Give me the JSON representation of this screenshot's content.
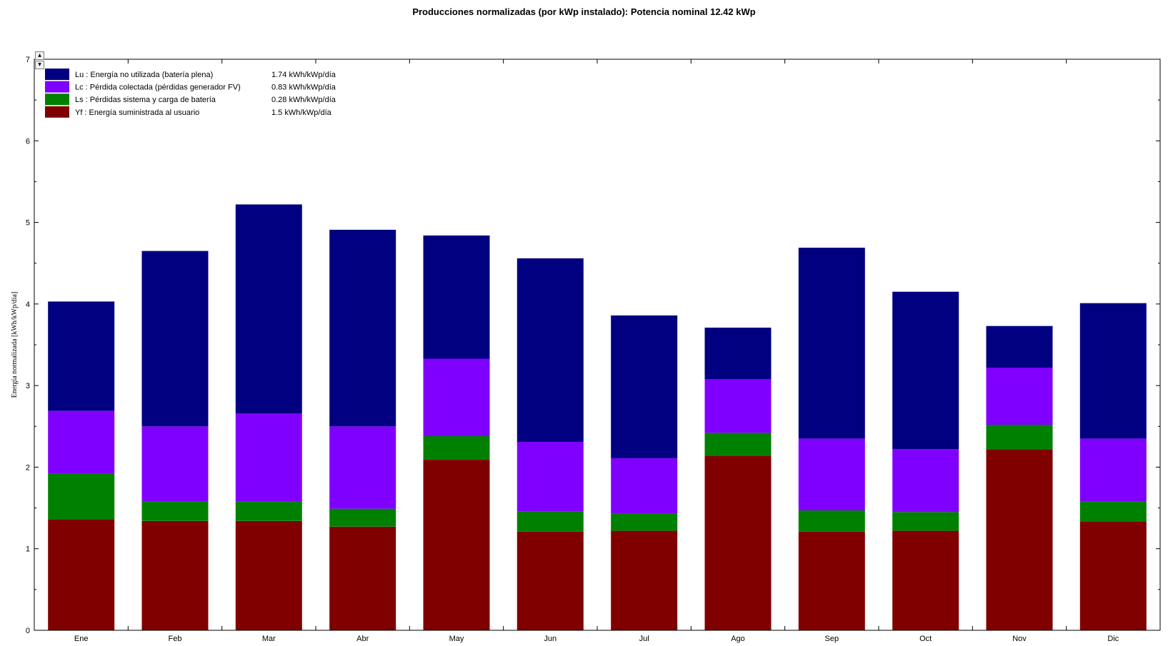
{
  "chart_data": {
    "type": "bar",
    "stacked": true,
    "title": "Producciones normalizadas (por kWp instalado):  Potencia nominal 12.42 kWp",
    "xlabel": "",
    "ylabel": "Energía normalizada [kWh/kWp/día]",
    "ylim": [
      0,
      7
    ],
    "yticks": [
      0,
      1,
      2,
      3,
      4,
      5,
      6,
      7
    ],
    "categories": [
      "Ene",
      "Feb",
      "Mar",
      "Abr",
      "May",
      "Jun",
      "Jul",
      "Ago",
      "Sep",
      "Oct",
      "Nov",
      "Dic"
    ],
    "series": [
      {
        "name": "Yf : Energía suministrada al usuario",
        "summary": "1.5 kWh/kWp/día",
        "color": "#800000",
        "values": [
          1.36,
          1.34,
          1.34,
          1.27,
          2.09,
          1.21,
          1.22,
          2.14,
          1.21,
          1.22,
          2.22,
          1.33
        ]
      },
      {
        "name": "Ls : Pérdidas sistema y carga de batería",
        "summary": "0.28 kWh/kWp/día",
        "color": "#008000",
        "values": [
          0.56,
          0.24,
          0.24,
          0.22,
          0.29,
          0.25,
          0.21,
          0.28,
          0.26,
          0.23,
          0.3,
          0.25
        ]
      },
      {
        "name": "Lc : Pérdida colectada (pérdidas generador FV)",
        "summary": "0.83 kWh/kWp/día",
        "color": "#8000ff",
        "values": [
          0.77,
          0.92,
          1.08,
          1.01,
          0.95,
          0.85,
          0.68,
          0.66,
          0.88,
          0.77,
          0.7,
          0.77
        ]
      },
      {
        "name": "Lu : Energía no utilizada (batería plena)",
        "summary": "1.74 kWh/kWp/día",
        "color": "#000080",
        "values": [
          1.34,
          2.15,
          2.56,
          2.41,
          1.51,
          2.25,
          1.75,
          0.63,
          2.34,
          1.93,
          0.51,
          1.66
        ]
      }
    ],
    "legend": {
      "position": "top-left",
      "order": [
        3,
        2,
        1,
        0
      ]
    },
    "grid": false
  },
  "scroll": {
    "up_glyph": "▲",
    "down_glyph": "▼"
  }
}
